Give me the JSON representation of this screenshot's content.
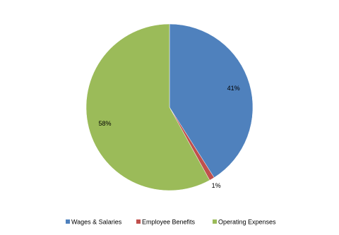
{
  "chart_data": {
    "type": "pie",
    "categories": [
      "Wages & Salaries",
      "Employee Benefits",
      "Operating Expenses"
    ],
    "values": [
      41,
      1,
      58
    ],
    "value_labels": [
      "41%",
      "1%",
      "58%"
    ],
    "colors": [
      "#4f81bd",
      "#c0504d",
      "#9bbb59"
    ],
    "legend": "bottom"
  }
}
